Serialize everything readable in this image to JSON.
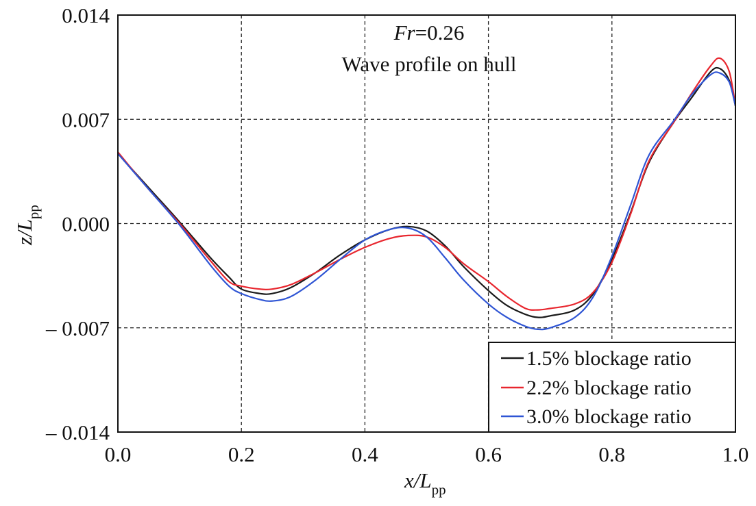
{
  "chart_data": {
    "type": "line",
    "annotation": {
      "fr_label": "Fr",
      "fr_value": "=0.26",
      "subtitle": "Wave profile on hull"
    },
    "xlabel": {
      "main": "x/L",
      "sub": "pp"
    },
    "ylabel": {
      "main": "z/L",
      "sub": "pp"
    },
    "xlim": [
      0.0,
      1.0
    ],
    "ylim": [
      -0.014,
      0.014
    ],
    "xticks": [
      0.0,
      0.2,
      0.4,
      0.6,
      0.8,
      1.0
    ],
    "xtick_labels": [
      "0.0",
      "0.2",
      "0.4",
      "0.6",
      "0.8",
      "1.0"
    ],
    "yticks": [
      0.014,
      0.007,
      0.0,
      -0.007,
      -0.014
    ],
    "ytick_labels": [
      "0.014",
      "0.007",
      "0.000",
      "– 0.007",
      "– 0.014"
    ],
    "grid": true,
    "legend_position": "bottom-right",
    "series": [
      {
        "name": "1.5% blockage ratio",
        "color": "#1a1a1a",
        "x": [
          0.0,
          0.05,
          0.1,
          0.15,
          0.18,
          0.2,
          0.23,
          0.25,
          0.28,
          0.32,
          0.36,
          0.4,
          0.44,
          0.47,
          0.5,
          0.53,
          0.56,
          0.6,
          0.63,
          0.66,
          0.68,
          0.7,
          0.74,
          0.77,
          0.8,
          0.83,
          0.86,
          0.9,
          0.93,
          0.96,
          0.975,
          0.99,
          1.0
        ],
        "y": [
          0.0047,
          0.0024,
          0.0001,
          -0.0023,
          -0.0036,
          -0.0044,
          -0.0047,
          -0.0047,
          -0.0043,
          -0.0033,
          -0.0021,
          -0.0011,
          -0.0004,
          -0.0002,
          -0.0005,
          -0.0015,
          -0.0029,
          -0.0045,
          -0.0055,
          -0.0061,
          -0.0063,
          -0.0062,
          -0.0058,
          -0.0047,
          -0.0024,
          0.0007,
          0.0041,
          0.0068,
          0.0085,
          0.0102,
          0.0104,
          0.0096,
          0.0079
        ]
      },
      {
        "name": "2.2% blockage ratio",
        "color": "#e8262e",
        "x": [
          0.0,
          0.05,
          0.1,
          0.15,
          0.18,
          0.2,
          0.23,
          0.25,
          0.28,
          0.32,
          0.36,
          0.4,
          0.44,
          0.47,
          0.5,
          0.53,
          0.56,
          0.6,
          0.63,
          0.66,
          0.68,
          0.7,
          0.74,
          0.77,
          0.8,
          0.83,
          0.86,
          0.9,
          0.93,
          0.96,
          0.975,
          0.99,
          1.0
        ],
        "y": [
          0.0048,
          0.0023,
          0.0,
          -0.0025,
          -0.0039,
          -0.0042,
          -0.0044,
          -0.0044,
          -0.0041,
          -0.0033,
          -0.0024,
          -0.0016,
          -0.001,
          -0.0008,
          -0.0009,
          -0.0016,
          -0.0027,
          -0.0039,
          -0.0049,
          -0.0057,
          -0.0058,
          -0.0057,
          -0.0054,
          -0.0046,
          -0.0026,
          0.0006,
          0.0042,
          0.0068,
          0.0088,
          0.0106,
          0.0111,
          0.0102,
          0.0079
        ]
      },
      {
        "name": "3.0% blockage ratio",
        "color": "#2f55d4",
        "x": [
          0.0,
          0.05,
          0.1,
          0.15,
          0.18,
          0.2,
          0.23,
          0.25,
          0.28,
          0.32,
          0.36,
          0.4,
          0.44,
          0.47,
          0.5,
          0.53,
          0.56,
          0.6,
          0.63,
          0.66,
          0.68,
          0.7,
          0.74,
          0.77,
          0.8,
          0.83,
          0.86,
          0.9,
          0.93,
          0.96,
          0.975,
          0.99,
          1.0
        ],
        "y": [
          0.0047,
          0.0023,
          -0.0001,
          -0.0028,
          -0.0042,
          -0.0047,
          -0.0051,
          -0.0052,
          -0.0049,
          -0.0038,
          -0.0024,
          -0.0011,
          -0.0004,
          -0.0003,
          -0.0009,
          -0.0023,
          -0.0038,
          -0.0054,
          -0.0063,
          -0.0069,
          -0.0071,
          -0.007,
          -0.0063,
          -0.0049,
          -0.0022,
          0.0012,
          0.0046,
          0.0069,
          0.0087,
          0.01,
          0.0101,
          0.0095,
          0.0079
        ]
      }
    ]
  }
}
